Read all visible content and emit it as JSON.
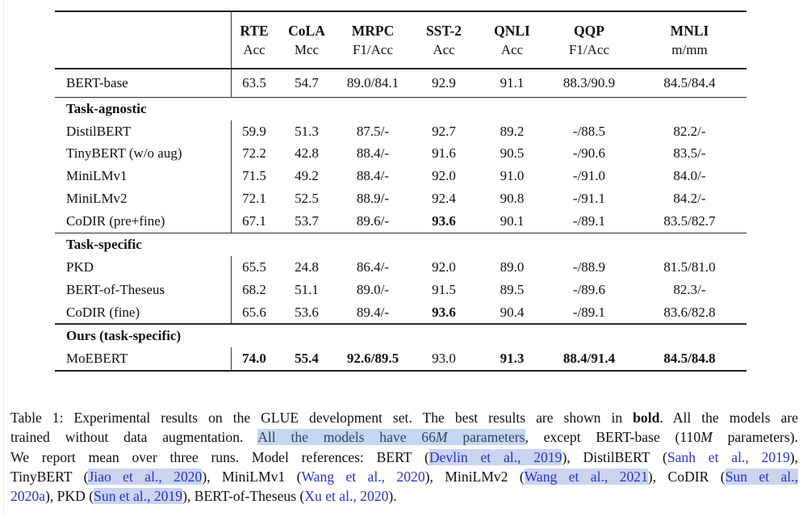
{
  "colors": {
    "citation_blue": "#2834c4",
    "citation_highlight": "#ccd3ee",
    "phrase_highlight": "#c3d6f2",
    "phrase_text": "#364360",
    "rule": "#1c1c1c"
  },
  "table": {
    "columns": [
      {
        "name": "RTE",
        "metric": "Acc"
      },
      {
        "name": "CoLA",
        "metric": "Mcc"
      },
      {
        "name": "MRPC",
        "metric": "F1/Acc"
      },
      {
        "name": "SST-2",
        "metric": "Acc"
      },
      {
        "name": "QNLI",
        "metric": "Acc"
      },
      {
        "name": "QQP",
        "metric": "F1/Acc"
      },
      {
        "name": "MNLI",
        "metric": "m/mm"
      }
    ],
    "sections": [
      {
        "header": null,
        "rows": [
          {
            "model": "BERT-base",
            "values": [
              "63.5",
              "54.7",
              "89.0/84.1",
              "92.9",
              "91.1",
              "88.3/90.9",
              "84.5/84.4"
            ],
            "bold": [
              false,
              false,
              false,
              false,
              false,
              false,
              false
            ]
          }
        ]
      },
      {
        "header": "Task-agnostic",
        "rows": [
          {
            "model": "DistilBERT",
            "values": [
              "59.9",
              "51.3",
              "87.5/-",
              "92.7",
              "89.2",
              "-/88.5",
              "82.2/-"
            ],
            "bold": [
              false,
              false,
              false,
              false,
              false,
              false,
              false
            ]
          },
          {
            "model": "TinyBERT (w/o aug)",
            "values": [
              "72.2",
              "42.8",
              "88.4/-",
              "91.6",
              "90.5",
              "-/90.6",
              "83.5/-"
            ],
            "bold": [
              false,
              false,
              false,
              false,
              false,
              false,
              false
            ]
          },
          {
            "model": "MiniLMv1",
            "values": [
              "71.5",
              "49.2",
              "88.4/-",
              "92.0",
              "91.0",
              "-/91.0",
              "84.0/-"
            ],
            "bold": [
              false,
              false,
              false,
              false,
              false,
              false,
              false
            ]
          },
          {
            "model": "MiniLMv2",
            "values": [
              "72.1",
              "52.5",
              "88.9/-",
              "92.4",
              "90.8",
              "-/91.1",
              "84.2/-"
            ],
            "bold": [
              false,
              false,
              false,
              false,
              false,
              false,
              false
            ]
          },
          {
            "model": "CoDIR (pre+fine)",
            "values": [
              "67.1",
              "53.7",
              "89.6/-",
              "93.6",
              "90.1",
              "-/89.1",
              "83.5/82.7"
            ],
            "bold": [
              false,
              false,
              false,
              true,
              false,
              false,
              false
            ]
          }
        ]
      },
      {
        "header": "Task-specific",
        "rows": [
          {
            "model": "PKD",
            "values": [
              "65.5",
              "24.8",
              "86.4/-",
              "92.0",
              "89.0",
              "-/88.9",
              "81.5/81.0"
            ],
            "bold": [
              false,
              false,
              false,
              false,
              false,
              false,
              false
            ]
          },
          {
            "model": "BERT-of-Theseus",
            "values": [
              "68.2",
              "51.1",
              "89.0/-",
              "91.5",
              "89.5",
              "-/89.6",
              "82.3/-"
            ],
            "bold": [
              false,
              false,
              false,
              false,
              false,
              false,
              false
            ]
          },
          {
            "model": "CoDIR (fine)",
            "values": [
              "65.6",
              "53.6",
              "89.4/-",
              "93.6",
              "90.4",
              "-/89.1",
              "83.6/82.8"
            ],
            "bold": [
              false,
              false,
              false,
              true,
              false,
              false,
              false
            ]
          }
        ]
      },
      {
        "header": "Ours (task-specific)",
        "rows": [
          {
            "model": "MoEBERT",
            "values": [
              "74.0",
              "55.4",
              "92.6/89.5",
              "93.0",
              "91.3",
              "88.4/91.4",
              "84.5/84.8"
            ],
            "bold": [
              true,
              true,
              true,
              false,
              true,
              true,
              true
            ]
          }
        ]
      }
    ]
  },
  "caption": {
    "lines": [
      [
        {
          "t": "Table 1: Experimental results on the GLUE development set. The best results are shown in ",
          "s": ""
        },
        {
          "t": "bold",
          "s": "b"
        },
        {
          "t": ". All the models are",
          "s": ""
        }
      ],
      [
        {
          "t": "trained without data augmentation. ",
          "s": ""
        },
        {
          "t": "All the models have 66",
          "s": "hl"
        },
        {
          "t": "M",
          "s": "hlm"
        },
        {
          "t": " parameters",
          "s": "hl"
        },
        {
          "t": ", except BERT-base (110",
          "s": ""
        },
        {
          "t": "M",
          "s": "m"
        },
        {
          "t": " parameters).",
          "s": ""
        }
      ],
      [
        {
          "t": "We report mean over three runs. Model references: BERT (",
          "s": ""
        },
        {
          "t": "Devlin et al., 2019",
          "s": "ch"
        },
        {
          "t": "), DistilBERT (",
          "s": ""
        },
        {
          "t": "Sanh et al., 2019",
          "s": "c"
        },
        {
          "t": "),",
          "s": ""
        }
      ],
      [
        {
          "t": "TinyBERT (",
          "s": ""
        },
        {
          "t": "Jiao et al., 2020",
          "s": "ch"
        },
        {
          "t": "), MiniLMv1 (",
          "s": ""
        },
        {
          "t": "Wang et al., 2020",
          "s": "c"
        },
        {
          "t": "), MiniLMv2 (",
          "s": ""
        },
        {
          "t": "Wang et al., 2021",
          "s": "ch"
        },
        {
          "t": "), CoDIR (",
          "s": ""
        },
        {
          "t": "Sun et al.,",
          "s": "ch"
        }
      ],
      [
        {
          "t": "2020a",
          "s": "c"
        },
        {
          "t": "), PKD (",
          "s": ""
        },
        {
          "t": "Sun et al., 2019",
          "s": "ch"
        },
        {
          "t": "), BERT-of-Theseus (",
          "s": ""
        },
        {
          "t": "Xu et al., 2020",
          "s": "c"
        },
        {
          "t": ").",
          "s": ""
        }
      ]
    ]
  }
}
